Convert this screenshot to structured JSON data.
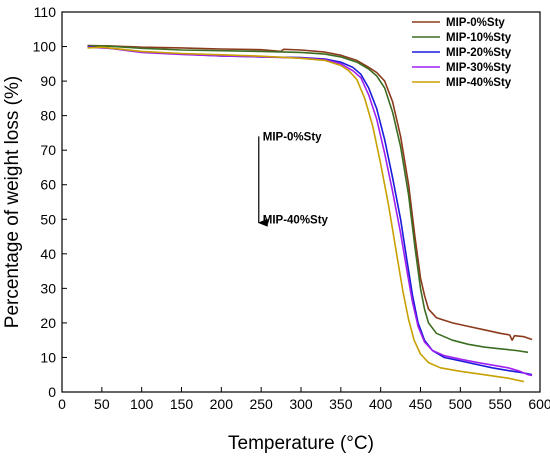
{
  "chart_data": {
    "type": "line",
    "title": "",
    "xlabel": "Temperature (°C)",
    "ylabel": "Percentage of weight loss (%)",
    "xlim": [
      0,
      600
    ],
    "ylim": [
      0,
      110
    ],
    "x_ticks": [
      0,
      50,
      100,
      150,
      200,
      250,
      300,
      350,
      400,
      450,
      500,
      550,
      600
    ],
    "y_ticks": [
      0,
      10,
      20,
      30,
      40,
      50,
      60,
      70,
      80,
      90,
      100,
      110
    ],
    "grid": false,
    "legend_position": "top-right",
    "series": [
      {
        "name": "MIP-0%Sty",
        "color": "#8b3a1c",
        "points": [
          [
            32,
            100.3
          ],
          [
            60,
            100.2
          ],
          [
            100,
            99.8
          ],
          [
            150,
            99.6
          ],
          [
            200,
            99.3
          ],
          [
            250,
            99.1
          ],
          [
            275,
            98.6
          ],
          [
            278,
            99.2
          ],
          [
            300,
            99.0
          ],
          [
            330,
            98.4
          ],
          [
            350,
            97.5
          ],
          [
            370,
            96.0
          ],
          [
            385,
            94.0
          ],
          [
            395,
            92.5
          ],
          [
            405,
            90.0
          ],
          [
            415,
            84.0
          ],
          [
            425,
            74.0
          ],
          [
            435,
            60.0
          ],
          [
            443,
            45.0
          ],
          [
            450,
            33.0
          ],
          [
            455,
            28.0
          ],
          [
            460,
            24.0
          ],
          [
            470,
            21.5
          ],
          [
            490,
            20.0
          ],
          [
            510,
            19.0
          ],
          [
            530,
            18.0
          ],
          [
            550,
            17.0
          ],
          [
            562,
            16.5
          ],
          [
            565,
            15.0
          ],
          [
            568,
            16.3
          ],
          [
            580,
            16.0
          ],
          [
            590,
            15.2
          ]
        ]
      },
      {
        "name": "MIP-10%Sty",
        "color": "#3b6e22",
        "points": [
          [
            32,
            100.2
          ],
          [
            60,
            100.1
          ],
          [
            100,
            99.5
          ],
          [
            150,
            99.0
          ],
          [
            200,
            98.8
          ],
          [
            250,
            98.6
          ],
          [
            300,
            98.3
          ],
          [
            330,
            97.8
          ],
          [
            350,
            97.0
          ],
          [
            370,
            95.5
          ],
          [
            385,
            93.5
          ],
          [
            395,
            91.5
          ],
          [
            405,
            88.0
          ],
          [
            415,
            81.0
          ],
          [
            425,
            71.0
          ],
          [
            435,
            57.0
          ],
          [
            443,
            42.0
          ],
          [
            450,
            30.0
          ],
          [
            455,
            24.0
          ],
          [
            460,
            20.0
          ],
          [
            470,
            17.0
          ],
          [
            490,
            15.0
          ],
          [
            510,
            13.8
          ],
          [
            530,
            13.0
          ],
          [
            550,
            12.5
          ],
          [
            570,
            12.0
          ],
          [
            585,
            11.5
          ]
        ]
      },
      {
        "name": "MIP-20%Sty",
        "color": "#1a1adb",
        "points": [
          [
            32,
            100.0
          ],
          [
            60,
            99.5
          ],
          [
            100,
            98.5
          ],
          [
            150,
            97.8
          ],
          [
            200,
            97.3
          ],
          [
            250,
            97.0
          ],
          [
            300,
            96.8
          ],
          [
            330,
            96.4
          ],
          [
            350,
            95.5
          ],
          [
            365,
            94.0
          ],
          [
            375,
            92.0
          ],
          [
            385,
            88.0
          ],
          [
            395,
            82.0
          ],
          [
            405,
            73.0
          ],
          [
            415,
            62.0
          ],
          [
            425,
            50.0
          ],
          [
            433,
            38.0
          ],
          [
            440,
            28.0
          ],
          [
            447,
            20.0
          ],
          [
            455,
            15.0
          ],
          [
            465,
            12.0
          ],
          [
            480,
            10.0
          ],
          [
            500,
            9.0
          ],
          [
            520,
            8.0
          ],
          [
            540,
            7.0
          ],
          [
            560,
            6.2
          ],
          [
            580,
            5.5
          ],
          [
            590,
            5.0
          ]
        ]
      },
      {
        "name": "MIP-30%Sty",
        "color": "#a020f0",
        "points": [
          [
            32,
            99.8
          ],
          [
            60,
            99.5
          ],
          [
            100,
            98.3
          ],
          [
            150,
            97.7
          ],
          [
            200,
            97.3
          ],
          [
            250,
            97.0
          ],
          [
            300,
            96.7
          ],
          [
            330,
            96.2
          ],
          [
            350,
            95.0
          ],
          [
            365,
            93.0
          ],
          [
            375,
            91.0
          ],
          [
            385,
            86.0
          ],
          [
            395,
            79.0
          ],
          [
            405,
            69.0
          ],
          [
            415,
            58.0
          ],
          [
            425,
            46.0
          ],
          [
            433,
            35.0
          ],
          [
            440,
            26.0
          ],
          [
            447,
            19.0
          ],
          [
            455,
            14.5
          ],
          [
            465,
            12.0
          ],
          [
            480,
            10.5
          ],
          [
            500,
            9.5
          ],
          [
            520,
            8.6
          ],
          [
            540,
            7.8
          ],
          [
            560,
            7.0
          ],
          [
            575,
            6.0
          ],
          [
            585,
            5.0
          ],
          [
            590,
            4.8
          ]
        ]
      },
      {
        "name": "MIP-40%Sty",
        "color": "#c8a000",
        "points": [
          [
            32,
            99.6
          ],
          [
            50,
            99.8
          ],
          [
            100,
            98.6
          ],
          [
            150,
            98.0
          ],
          [
            200,
            97.6
          ],
          [
            250,
            97.2
          ],
          [
            300,
            96.6
          ],
          [
            330,
            96.0
          ],
          [
            350,
            94.5
          ],
          [
            360,
            93.0
          ],
          [
            370,
            90.5
          ],
          [
            380,
            85.0
          ],
          [
            390,
            77.0
          ],
          [
            400,
            66.0
          ],
          [
            410,
            54.0
          ],
          [
            420,
            40.0
          ],
          [
            428,
            29.0
          ],
          [
            435,
            21.0
          ],
          [
            442,
            15.0
          ],
          [
            450,
            11.0
          ],
          [
            460,
            8.5
          ],
          [
            475,
            7.0
          ],
          [
            500,
            6.0
          ],
          [
            530,
            5.0
          ],
          [
            560,
            4.0
          ],
          [
            580,
            3.0
          ]
        ]
      }
    ],
    "annotations": [
      {
        "text_top": "MIP-0%Sty",
        "text_bottom": "MIP-40%Sty",
        "arrow_x": 247,
        "arrow_y_start": 74,
        "arrow_y_end": 49
      }
    ]
  }
}
